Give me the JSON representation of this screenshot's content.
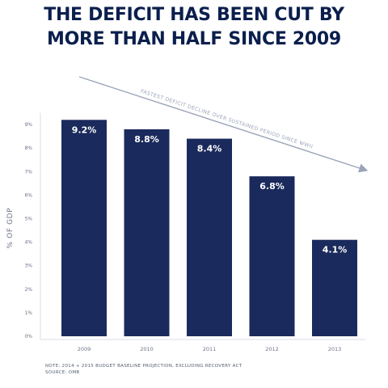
{
  "title": {
    "line1": "THE DEFICIT HAS BEEN CUT BY",
    "line2": "MORE THAN HALF SINCE 2009"
  },
  "footnote": {
    "line1": "NOTE: 2014 + 2015 BUDGET BASELINE PROJECTION, EXCLUDING RECOVERY ACT",
    "line2": "SOURCE: OMB"
  },
  "colors": {
    "bar": "#1b2a5c",
    "title": "#0b1f4d",
    "arrow": "#9aa4b8",
    "grid": "#d9dde6"
  },
  "chart_data": {
    "type": "bar",
    "title": "THE DEFICIT HAS BEEN CUT BY MORE THAN HALF SINCE 2009",
    "xlabel": "",
    "ylabel": "% OF GDP",
    "categories": [
      "2009",
      "2010",
      "2011",
      "2012",
      "2013"
    ],
    "values": [
      9.2,
      8.8,
      8.4,
      6.8,
      4.1
    ],
    "data_labels": [
      "9.2%",
      "8.8%",
      "8.4%",
      "6.8%",
      "4.1%"
    ],
    "yticks": [
      "0%",
      "1%",
      "2%",
      "3%",
      "4%",
      "5%",
      "6%",
      "7%",
      "8%",
      "9%"
    ],
    "ylim": [
      0,
      9.5
    ],
    "annotation": "FASTEST DEFICIT DECLINE OVER SUSTAINED PERIOD SINCE WWII",
    "grid": false,
    "legend": "none"
  }
}
